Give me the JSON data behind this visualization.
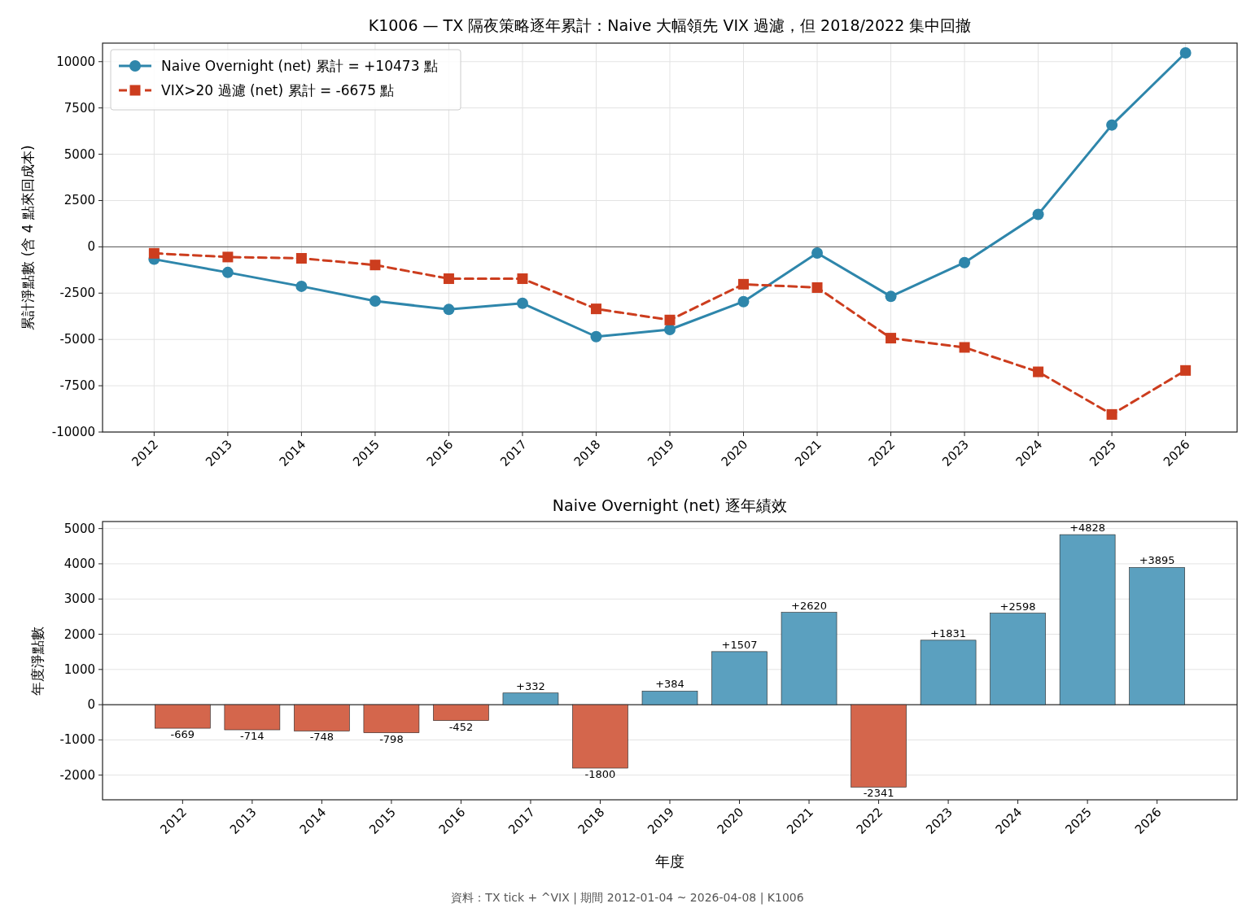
{
  "chart_data": [
    {
      "type": "line",
      "title": "K1006 — TX 隔夜策略逐年累計：Naive 大幅領先 VIX 過濾，但 2018/2022 集中回撤",
      "ylabel": "累計淨點數 (含 4 點來回成本)",
      "categories": [
        "2012",
        "2013",
        "2014",
        "2015",
        "2016",
        "2017",
        "2018",
        "2019",
        "2020",
        "2021",
        "2022",
        "2023",
        "2024",
        "2025",
        "2026"
      ],
      "series": [
        {
          "name": "Naive Overnight (net) 累計 = +10473 點",
          "color": "#2e86ab",
          "marker": "circle",
          "line_style": "solid",
          "values": [
            -669,
            -1383,
            -2131,
            -2929,
            -3381,
            -3049,
            -4849,
            -4465,
            -2958,
            -338,
            -2679,
            -848,
            1750,
            6578,
            10473
          ]
        },
        {
          "name": "VIX>20 過濾 (net) 累計 = -6675 點",
          "color": "#cc3d1e",
          "marker": "square",
          "line_style": "dashed",
          "values": [
            -350,
            -550,
            -620,
            -980,
            -1720,
            -1720,
            -3350,
            -3950,
            -2020,
            -2200,
            -4930,
            -5430,
            -6750,
            -9050,
            -6675
          ]
        }
      ],
      "ylim": [
        -10000,
        11000
      ],
      "yticks": [
        -10000,
        -7500,
        -5000,
        -2500,
        0,
        2500,
        5000,
        7500,
        10000
      ],
      "grid": true,
      "legend": "top left",
      "ref_lines": [
        {
          "axis": "y",
          "value": 0,
          "color": "#555555"
        }
      ]
    },
    {
      "type": "bar",
      "title": "Naive Overnight (net) 逐年績效",
      "xlabel": "年度",
      "ylabel": "年度淨點數",
      "categories": [
        "2012",
        "2013",
        "2014",
        "2015",
        "2016",
        "2017",
        "2018",
        "2019",
        "2020",
        "2021",
        "2022",
        "2023",
        "2024",
        "2025",
        "2026"
      ],
      "values": [
        -669,
        -714,
        -748,
        -798,
        -452,
        332,
        -1800,
        384,
        1507,
        2620,
        -2341,
        1831,
        2598,
        4828,
        3895
      ],
      "colors": [
        "#d4664c",
        "#d4664c",
        "#d4664c",
        "#d4664c",
        "#d4664c",
        "#5ba0bf",
        "#d4664c",
        "#5ba0bf",
        "#5ba0bf",
        "#5ba0bf",
        "#d4664c",
        "#5ba0bf",
        "#5ba0bf",
        "#5ba0bf",
        "#5ba0bf"
      ],
      "value_labels": [
        "-669",
        "-714",
        "-748",
        "-798",
        "-452",
        "+332",
        "-1800",
        "+384",
        "+1507",
        "+2620",
        "-2341",
        "+1831",
        "+2598",
        "+4828",
        "+3895"
      ],
      "ylim": [
        -2700,
        5200
      ],
      "yticks": [
        -2000,
        -1000,
        0,
        1000,
        2000,
        3000,
        4000,
        5000
      ],
      "grid": "y",
      "ref_lines": [
        {
          "axis": "y",
          "value": 0,
          "color": "#000000"
        }
      ],
      "annotations": [
        "資料：TX tick + ^VIX | 期間 2012-01-04 ~ 2026-04-08 | K1006"
      ]
    }
  ]
}
